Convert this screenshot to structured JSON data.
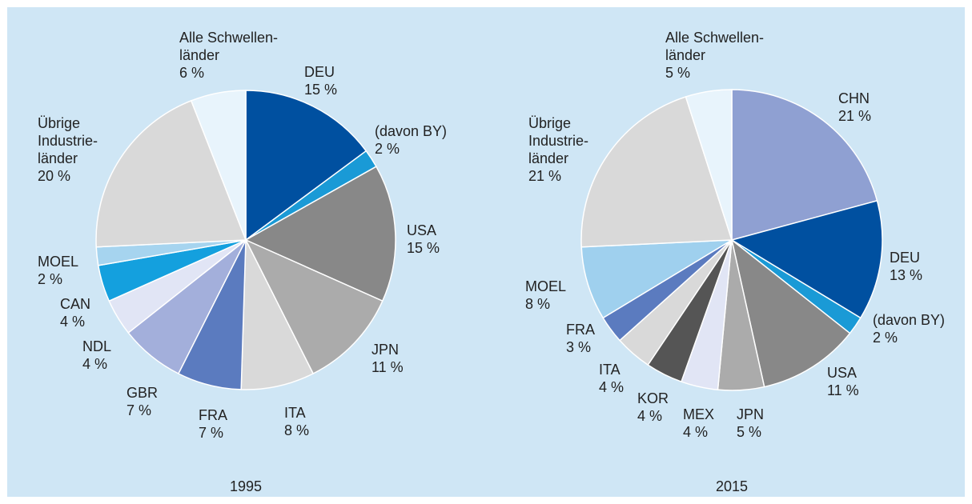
{
  "chart_data": [
    {
      "type": "pie",
      "title": "1995",
      "categories": [
        "DEU",
        "(davon BY)",
        "USA",
        "JPN",
        "ITA",
        "FRA",
        "GBR",
        "NDL",
        "CAN",
        "MOEL",
        "Übrige\nIndustrie-\nländer",
        "Alle Schwellen-\nländer"
      ],
      "values": [
        15,
        2,
        15,
        11,
        8,
        7,
        7,
        4,
        4,
        2,
        20,
        6
      ],
      "value_labels": [
        "15 %",
        "2 %",
        "15 %",
        "11 %",
        "8 %",
        "7 %",
        "7 %",
        "4 %",
        "4 %",
        "2 %",
        "20 %",
        "6 %"
      ],
      "colors": [
        "#0050a0",
        "#1a9ad6",
        "#888888",
        "#ababab",
        "#d9d9d9",
        "#5b7bbf",
        "#a3afdb",
        "#e1e5f5",
        "#14a0de",
        "#a6d4ef",
        "#d9d9d9",
        "#e8f4fc"
      ]
    },
    {
      "type": "pie",
      "title": "2015",
      "categories": [
        "CHN",
        "DEU",
        "(davon BY)",
        "USA",
        "JPN",
        "MEX",
        "KOR",
        "ITA",
        "FRA",
        "MOEL",
        "Übrige\nIndustrie-\nländer",
        "Alle Schwellen-\nländer"
      ],
      "values": [
        21,
        13,
        2,
        11,
        5,
        4,
        4,
        4,
        3,
        8,
        21,
        5
      ],
      "value_labels": [
        "21 %",
        "13 %",
        "2 %",
        "11 %",
        "5 %",
        "4 %",
        "4 %",
        "4 %",
        "3 %",
        "8 %",
        "21 %",
        "5 %"
      ],
      "colors": [
        "#8fa0d2",
        "#0050a0",
        "#1a9ad6",
        "#888888",
        "#ababab",
        "#e1e5f5",
        "#555555",
        "#d9d9d9",
        "#5b7bbf",
        "#9fd0ee",
        "#d9d9d9",
        "#e8f4fc"
      ]
    }
  ]
}
